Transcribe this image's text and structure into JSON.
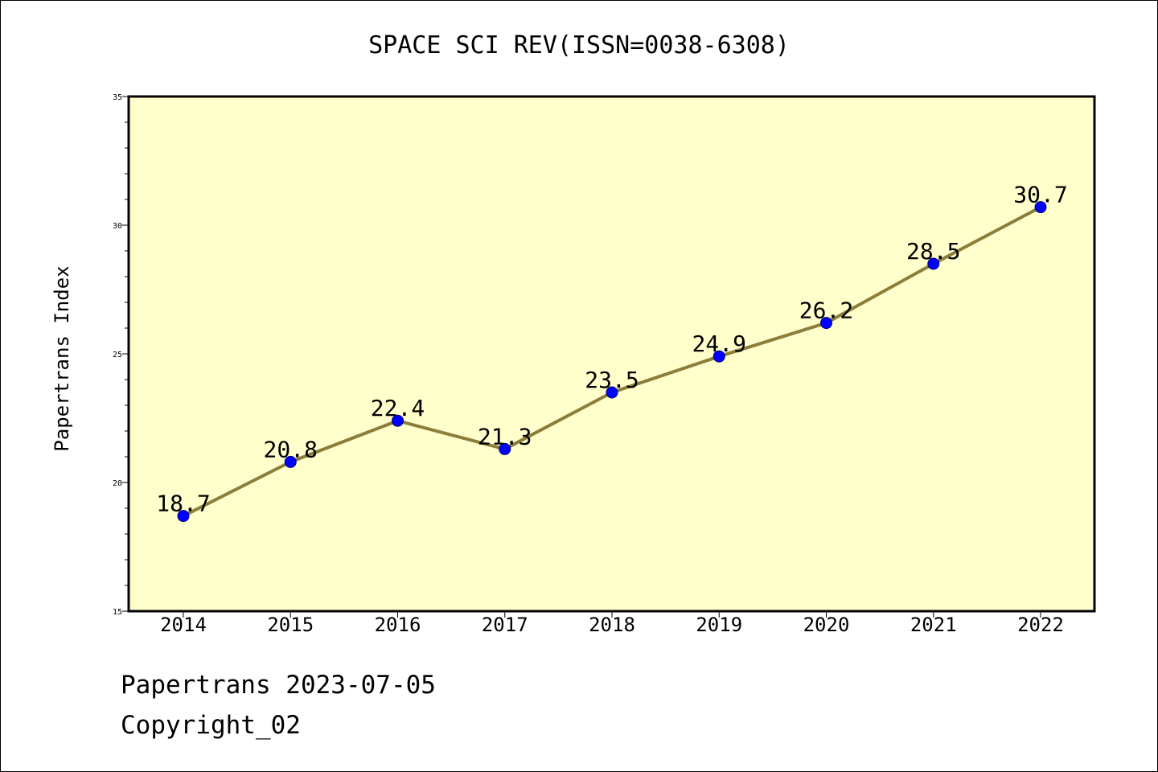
{
  "chart_data": {
    "type": "line",
    "title": "SPACE SCI REV(ISSN=0038-6308)",
    "xlabel": "",
    "ylabel": "Papertrans Index",
    "categories": [
      "2014",
      "2015",
      "2016",
      "2017",
      "2018",
      "2019",
      "2020",
      "2021",
      "2022"
    ],
    "values": [
      18.7,
      20.8,
      22.4,
      21.3,
      23.5,
      24.9,
      26.2,
      28.5,
      30.7
    ],
    "data_labels": [
      "18.7",
      "20.8",
      "22.4",
      "21.3",
      "23.5",
      "24.9",
      "26.2",
      "28.5",
      "30.7"
    ],
    "ylim": [
      15,
      35
    ],
    "yticks": [
      "15",
      "20",
      "25",
      "30",
      "35"
    ],
    "grid": false,
    "colors": {
      "plot_background": "#ffffcc",
      "line": "#8b7d3a",
      "marker": "#0000ff",
      "marker_edge": "#000080"
    }
  },
  "footer": {
    "line1": "Papertrans 2023-07-05",
    "line2": "Copyright_02"
  }
}
